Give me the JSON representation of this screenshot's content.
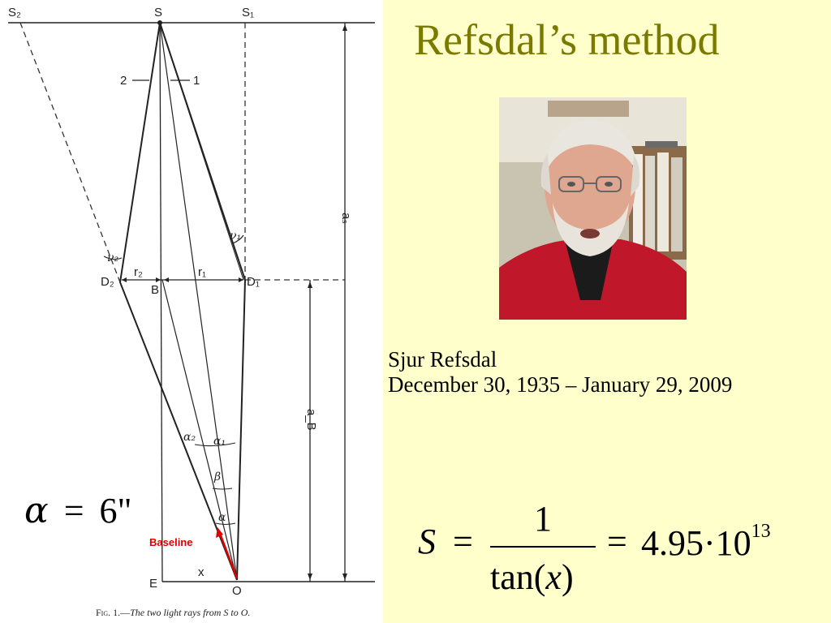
{
  "slide": {
    "title": "Refsdal’s method",
    "person_name": "Sjur Refsdal",
    "person_dates": "December 30, 1935 – January 29, 2009",
    "background_color": "#ffffcc",
    "title_color": "#7a7a00"
  },
  "diagram": {
    "labels": {
      "S": "S",
      "S1": "S₁",
      "S2": "S₂",
      "ray1": "1",
      "ray2": "2",
      "nu1": "ν₁",
      "nu2": "ν₂",
      "r1": "r₁",
      "r2": "r₂",
      "D1": "D₁",
      "D2": "D₂",
      "B": "B",
      "aS": "aₛ",
      "aB": "a_B",
      "alpha1": "α₁",
      "alpha2": "α₂",
      "beta": "β",
      "alpha": "α",
      "baseline": "Baseline",
      "x": "x",
      "E": "E",
      "O": "O"
    },
    "baseline_color": "#e00000",
    "caption_fig": "Fig. 1.—",
    "caption_text": "The two light rays from S to O."
  },
  "formula_alpha": {
    "lhs": "α",
    "eq": "=",
    "value": "6",
    "unit": "\""
  },
  "formula_s": {
    "lhs": "S",
    "eq": "=",
    "numerator": "1",
    "denominator_fn": "tan(",
    "denominator_var": "x",
    "denominator_close": ")",
    "eq2": "=",
    "mantissa": "4.95",
    "dot": "·",
    "base": "10",
    "exponent": "13"
  }
}
